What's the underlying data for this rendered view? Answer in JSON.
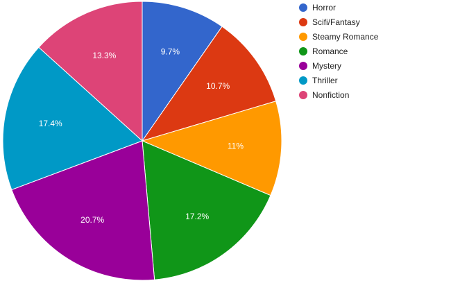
{
  "chart_data": {
    "type": "pie",
    "categories": [
      "Horror",
      "Scifi/Fantasy",
      "Steamy Romance",
      "Romance",
      "Mystery",
      "Thriller",
      "Nonfiction"
    ],
    "values": [
      9.7,
      10.7,
      11,
      17.2,
      20.7,
      17.4,
      13.3
    ],
    "data_labels": [
      "9.7%",
      "10.7%",
      "11%",
      "17.2%",
      "20.7%",
      "17.4%",
      "13.3%"
    ],
    "colors": [
      "#3366cc",
      "#dc3912",
      "#ff9900",
      "#109618",
      "#990099",
      "#0099c6",
      "#dd4477"
    ],
    "start_angle_deg": 0,
    "direction": "clockwise",
    "legend_position": "right",
    "title": ""
  }
}
